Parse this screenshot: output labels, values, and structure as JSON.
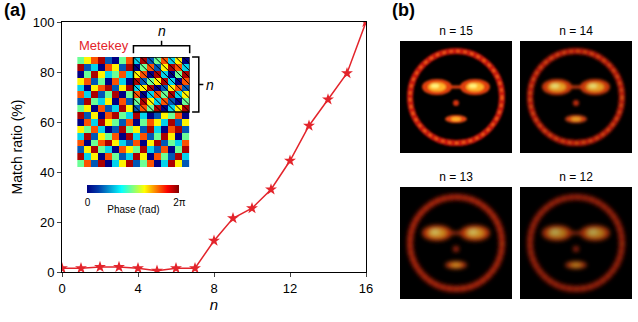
{
  "chart_data": [
    {
      "type": "line",
      "panel": "(a)",
      "x_label": "n",
      "y_label": "Match ratio (%)",
      "x": [
        0,
        1,
        2,
        3,
        4,
        5,
        6,
        7,
        8,
        9,
        10,
        11,
        12,
        13,
        14,
        15,
        16
      ],
      "values": [
        1.5,
        1.5,
        2,
        2,
        1.5,
        0.5,
        1.5,
        1.5,
        12.5,
        21.5,
        25.5,
        33,
        44.5,
        58.5,
        69,
        79.5,
        100
      ],
      "color": "#e3242b",
      "marker": "star",
      "xlim": [
        0,
        16
      ],
      "xticks": [
        0,
        4,
        8,
        12,
        16
      ],
      "ylim": [
        0,
        100
      ],
      "yticks": [
        0,
        20,
        40,
        60,
        80,
        100
      ],
      "grid": false,
      "inset": {
        "type": "heatmap",
        "title": "Metekey",
        "title_color": "#e3242b",
        "bracket_label": "n",
        "colorbar_title": "Phase (rad)",
        "zlim": [
          0,
          6.283
        ],
        "zticks": [
          0,
          {
            "value": 6.283,
            "label": "2π"
          }
        ],
        "cells": [
          [
            3,
            5,
            1,
            6,
            0,
            2,
            4,
            6,
            1,
            3,
            5,
            0,
            2,
            6,
            4,
            1
          ],
          [
            6,
            2,
            4,
            0,
            5,
            3,
            1,
            2,
            6,
            4,
            0,
            5,
            3,
            1,
            6,
            2
          ],
          [
            1,
            4,
            6,
            3,
            2,
            0,
            5,
            4,
            3,
            6,
            2,
            1,
            5,
            0,
            3,
            6
          ],
          [
            5,
            0,
            3,
            5,
            6,
            4,
            2,
            1,
            5,
            0,
            4,
            6,
            1,
            3,
            2,
            5
          ],
          [
            2,
            6,
            1,
            4,
            3,
            5,
            0,
            6,
            2,
            5,
            1,
            3,
            6,
            4,
            0,
            3
          ],
          [
            4,
            3,
            5,
            2,
            0,
            1,
            6,
            3,
            4,
            1,
            6,
            2,
            0,
            5,
            6,
            1
          ],
          [
            0,
            5,
            2,
            6,
            4,
            3,
            1,
            5,
            0,
            3,
            5,
            4,
            2,
            6,
            1,
            4
          ],
          [
            6,
            1,
            4,
            0,
            5,
            6,
            3,
            2,
            6,
            2,
            0,
            1,
            4,
            3,
            5,
            0
          ],
          [
            3,
            4,
            0,
            5,
            1,
            2,
            6,
            4,
            1,
            5,
            3,
            6,
            0,
            2,
            4,
            6
          ],
          [
            1,
            6,
            3,
            2,
            4,
            0,
            5,
            1,
            3,
            6,
            4,
            2,
            5,
            1,
            0,
            3
          ],
          [
            5,
            2,
            6,
            1,
            3,
            6,
            0,
            3,
            5,
            0,
            2,
            5,
            3,
            6,
            2,
            4
          ],
          [
            2,
            0,
            4,
            5,
            6,
            1,
            4,
            6,
            2,
            4,
            6,
            0,
            1,
            4,
            5,
            1
          ],
          [
            4,
            5,
            1,
            3,
            0,
            5,
            2,
            0,
            6,
            1,
            3,
            4,
            6,
            2,
            0,
            5
          ],
          [
            0,
            3,
            6,
            4,
            2,
            3,
            5,
            2,
            4,
            5,
            0,
            6,
            2,
            0,
            3,
            6
          ],
          [
            6,
            1,
            2,
            0,
            5,
            4,
            1,
            6,
            0,
            3,
            5,
            1,
            4,
            6,
            5,
            2
          ],
          [
            3,
            4,
            5,
            6,
            1,
            0,
            3,
            5,
            2,
            6,
            1,
            3,
            5,
            2,
            4,
            0
          ]
        ]
      }
    },
    {
      "type": "image",
      "panel": "(b)",
      "images": [
        {
          "title": "n = 15"
        },
        {
          "title": "n = 14"
        },
        {
          "title": "n = 13"
        },
        {
          "title": "n = 12"
        }
      ]
    }
  ]
}
